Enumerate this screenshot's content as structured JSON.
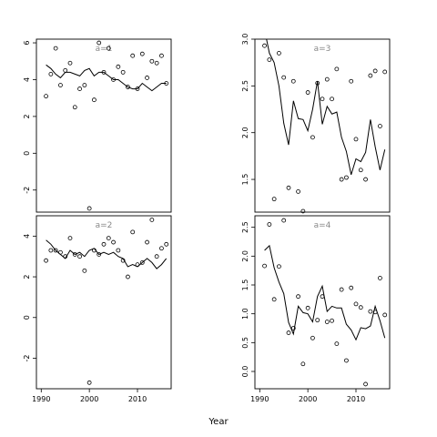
{
  "chart_data": {
    "type": "scatter",
    "xlabel": "Year",
    "line_color": "#000000",
    "point_color": "#000000",
    "title_color": "#888888",
    "panels": [
      {
        "title": "a=1",
        "xlim": [
          1989,
          2017
        ],
        "ylim": [
          -3.2,
          6.2
        ],
        "yticks": [
          "-2",
          "0",
          "2",
          "4",
          "6"
        ],
        "ytick_values": [
          -2,
          0,
          2,
          4,
          6
        ],
        "xticks": [],
        "xtick_values": [],
        "points": [
          [
            1991,
            3.1
          ],
          [
            1992,
            4.3
          ],
          [
            1993,
            5.7
          ],
          [
            1994,
            3.7
          ],
          [
            1995,
            4.5
          ],
          [
            1996,
            4.9
          ],
          [
            1997,
            2.5
          ],
          [
            1998,
            3.5
          ],
          [
            1999,
            3.7
          ],
          [
            2000,
            -3.0
          ],
          [
            2001,
            2.9
          ],
          [
            2002,
            6.0
          ],
          [
            2003,
            4.4
          ],
          [
            2004,
            5.7
          ],
          [
            2005,
            4.0
          ],
          [
            2006,
            4.7
          ],
          [
            2007,
            4.4
          ],
          [
            2008,
            3.6
          ],
          [
            2009,
            5.3
          ],
          [
            2010,
            3.5
          ],
          [
            2011,
            5.4
          ],
          [
            2012,
            4.1
          ],
          [
            2013,
            5.0
          ],
          [
            2014,
            4.9
          ],
          [
            2015,
            5.3
          ],
          [
            2016,
            3.8
          ]
        ],
        "line": [
          [
            1991,
            4.8
          ],
          [
            1992,
            4.6
          ],
          [
            1993,
            4.3
          ],
          [
            1994,
            4.1
          ],
          [
            1995,
            4.4
          ],
          [
            1996,
            4.4
          ],
          [
            1997,
            4.3
          ],
          [
            1998,
            4.2
          ],
          [
            1999,
            4.5
          ],
          [
            2000,
            4.6
          ],
          [
            2001,
            4.2
          ],
          [
            2002,
            4.4
          ],
          [
            2003,
            4.4
          ],
          [
            2004,
            4.2
          ],
          [
            2005,
            4.0
          ],
          [
            2006,
            4.0
          ],
          [
            2007,
            3.8
          ],
          [
            2008,
            3.6
          ],
          [
            2009,
            3.5
          ],
          [
            2010,
            3.5
          ],
          [
            2011,
            3.8
          ],
          [
            2012,
            3.6
          ],
          [
            2013,
            3.4
          ],
          [
            2014,
            3.6
          ],
          [
            2015,
            3.8
          ],
          [
            2016,
            3.8
          ]
        ]
      },
      {
        "title": "a=3",
        "xlim": [
          1989,
          2017
        ],
        "ylim": [
          1.15,
          3.0
        ],
        "yticks": [
          "1.5",
          "2.0",
          "2.5",
          "3.0"
        ],
        "ytick_values": [
          1.5,
          2.0,
          2.5,
          3.0
        ],
        "xticks": [],
        "xtick_values": [],
        "points": [
          [
            1991,
            2.93
          ],
          [
            1992,
            2.78
          ],
          [
            1993,
            1.29
          ],
          [
            1994,
            2.85
          ],
          [
            1995,
            2.59
          ],
          [
            1996,
            1.41
          ],
          [
            1997,
            2.55
          ],
          [
            1998,
            1.37
          ],
          [
            1999,
            1.16
          ],
          [
            2000,
            2.43
          ],
          [
            2001,
            1.95
          ],
          [
            2002,
            2.53
          ],
          [
            2003,
            2.36
          ],
          [
            2004,
            2.57
          ],
          [
            2005,
            2.36
          ],
          [
            2006,
            2.68
          ],
          [
            2007,
            1.5
          ],
          [
            2008,
            1.52
          ],
          [
            2009,
            2.55
          ],
          [
            2010,
            1.93
          ],
          [
            2011,
            1.6
          ],
          [
            2012,
            1.5
          ],
          [
            2013,
            2.61
          ],
          [
            2014,
            2.66
          ],
          [
            2015,
            2.07
          ],
          [
            2016,
            2.65
          ]
        ],
        "line": [
          [
            1991,
            3.1
          ],
          [
            1992,
            2.85
          ],
          [
            1993,
            2.75
          ],
          [
            1994,
            2.5
          ],
          [
            1995,
            2.1
          ],
          [
            1996,
            1.87
          ],
          [
            1997,
            2.34
          ],
          [
            1998,
            2.15
          ],
          [
            1999,
            2.14
          ],
          [
            2000,
            2.02
          ],
          [
            2001,
            2.25
          ],
          [
            2002,
            2.55
          ],
          [
            2003,
            2.09
          ],
          [
            2004,
            2.28
          ],
          [
            2005,
            2.2
          ],
          [
            2006,
            2.22
          ],
          [
            2007,
            1.95
          ],
          [
            2008,
            1.8
          ],
          [
            2009,
            1.55
          ],
          [
            2010,
            1.72
          ],
          [
            2011,
            1.69
          ],
          [
            2012,
            1.79
          ],
          [
            2013,
            2.14
          ],
          [
            2014,
            1.85
          ],
          [
            2015,
            1.6
          ],
          [
            2016,
            1.82
          ]
        ]
      },
      {
        "title": "a=2",
        "xlim": [
          1989,
          2017
        ],
        "ylim": [
          -3.5,
          5.0
        ],
        "yticks": [
          "-2",
          "0",
          "2",
          "4"
        ],
        "ytick_values": [
          -2,
          0,
          2,
          4
        ],
        "xticks": [
          "1990",
          "2000",
          "2010"
        ],
        "xtick_values": [
          1990,
          2000,
          2010
        ],
        "points": [
          [
            1991,
            2.8
          ],
          [
            1992,
            3.3
          ],
          [
            1993,
            3.3
          ],
          [
            1994,
            3.2
          ],
          [
            1995,
            3.0
          ],
          [
            1996,
            3.9
          ],
          [
            1997,
            3.1
          ],
          [
            1998,
            3.0
          ],
          [
            1999,
            2.3
          ],
          [
            2000,
            -3.2
          ],
          [
            2001,
            3.3
          ],
          [
            2002,
            3.1
          ],
          [
            2003,
            3.6
          ],
          [
            2004,
            3.9
          ],
          [
            2005,
            3.7
          ],
          [
            2006,
            3.3
          ],
          [
            2007,
            2.8
          ],
          [
            2008,
            2.0
          ],
          [
            2009,
            4.2
          ],
          [
            2010,
            2.6
          ],
          [
            2011,
            2.7
          ],
          [
            2012,
            3.7
          ],
          [
            2013,
            4.8
          ],
          [
            2014,
            3.0
          ],
          [
            2015,
            3.4
          ],
          [
            2016,
            3.6
          ]
        ],
        "line": [
          [
            1991,
            3.8
          ],
          [
            1992,
            3.6
          ],
          [
            1993,
            3.3
          ],
          [
            1994,
            3.1
          ],
          [
            1995,
            2.9
          ],
          [
            1996,
            3.3
          ],
          [
            1997,
            3.1
          ],
          [
            1998,
            3.2
          ],
          [
            1999,
            3.0
          ],
          [
            2000,
            3.3
          ],
          [
            2001,
            3.4
          ],
          [
            2002,
            3.1
          ],
          [
            2003,
            3.2
          ],
          [
            2004,
            3.1
          ],
          [
            2005,
            3.2
          ],
          [
            2006,
            3.0
          ],
          [
            2007,
            2.9
          ],
          [
            2008,
            2.5
          ],
          [
            2009,
            2.6
          ],
          [
            2010,
            2.5
          ],
          [
            2011,
            2.7
          ],
          [
            2012,
            2.9
          ],
          [
            2013,
            2.7
          ],
          [
            2014,
            2.4
          ],
          [
            2015,
            2.6
          ],
          [
            2016,
            2.9
          ]
        ]
      },
      {
        "title": "a=4",
        "xlim": [
          1989,
          2017
        ],
        "ylim": [
          -0.3,
          2.7
        ],
        "yticks": [
          "0.0",
          "0.5",
          "1.0",
          "1.5",
          "2.0",
          "2.5"
        ],
        "ytick_values": [
          0.0,
          0.5,
          1.0,
          1.5,
          2.0,
          2.5
        ],
        "xticks": [
          "1990",
          "2000",
          "2010"
        ],
        "xtick_values": [
          1990,
          2000,
          2010
        ],
        "points": [
          [
            1991,
            1.83
          ],
          [
            1992,
            2.55
          ],
          [
            1993,
            1.25
          ],
          [
            1994,
            1.82
          ],
          [
            1995,
            2.62
          ],
          [
            1996,
            0.67
          ],
          [
            1997,
            0.75
          ],
          [
            1998,
            1.3
          ],
          [
            1999,
            0.13
          ],
          [
            2000,
            1.1
          ],
          [
            2001,
            0.58
          ],
          [
            2002,
            0.89
          ],
          [
            2003,
            1.3
          ],
          [
            2004,
            0.86
          ],
          [
            2005,
            0.88
          ],
          [
            2006,
            0.48
          ],
          [
            2007,
            1.42
          ],
          [
            2008,
            0.19
          ],
          [
            2009,
            1.45
          ],
          [
            2010,
            1.17
          ],
          [
            2011,
            1.11
          ],
          [
            2012,
            -0.22
          ],
          [
            2013,
            1.04
          ],
          [
            2014,
            1.03
          ],
          [
            2015,
            1.62
          ],
          [
            2016,
            0.98
          ]
        ],
        "line": [
          [
            1991,
            2.1
          ],
          [
            1992,
            2.18
          ],
          [
            1993,
            1.8
          ],
          [
            1994,
            1.55
          ],
          [
            1995,
            1.35
          ],
          [
            1996,
            0.85
          ],
          [
            1997,
            0.65
          ],
          [
            1998,
            1.13
          ],
          [
            1999,
            1.02
          ],
          [
            2000,
            1.0
          ],
          [
            2001,
            0.86
          ],
          [
            2002,
            1.3
          ],
          [
            2003,
            1.48
          ],
          [
            2004,
            1.04
          ],
          [
            2005,
            1.13
          ],
          [
            2006,
            1.1
          ],
          [
            2007,
            1.1
          ],
          [
            2008,
            0.82
          ],
          [
            2009,
            0.72
          ],
          [
            2010,
            0.55
          ],
          [
            2011,
            0.76
          ],
          [
            2012,
            0.74
          ],
          [
            2013,
            0.79
          ],
          [
            2014,
            1.13
          ],
          [
            2015,
            0.88
          ],
          [
            2016,
            0.58
          ]
        ]
      }
    ]
  }
}
